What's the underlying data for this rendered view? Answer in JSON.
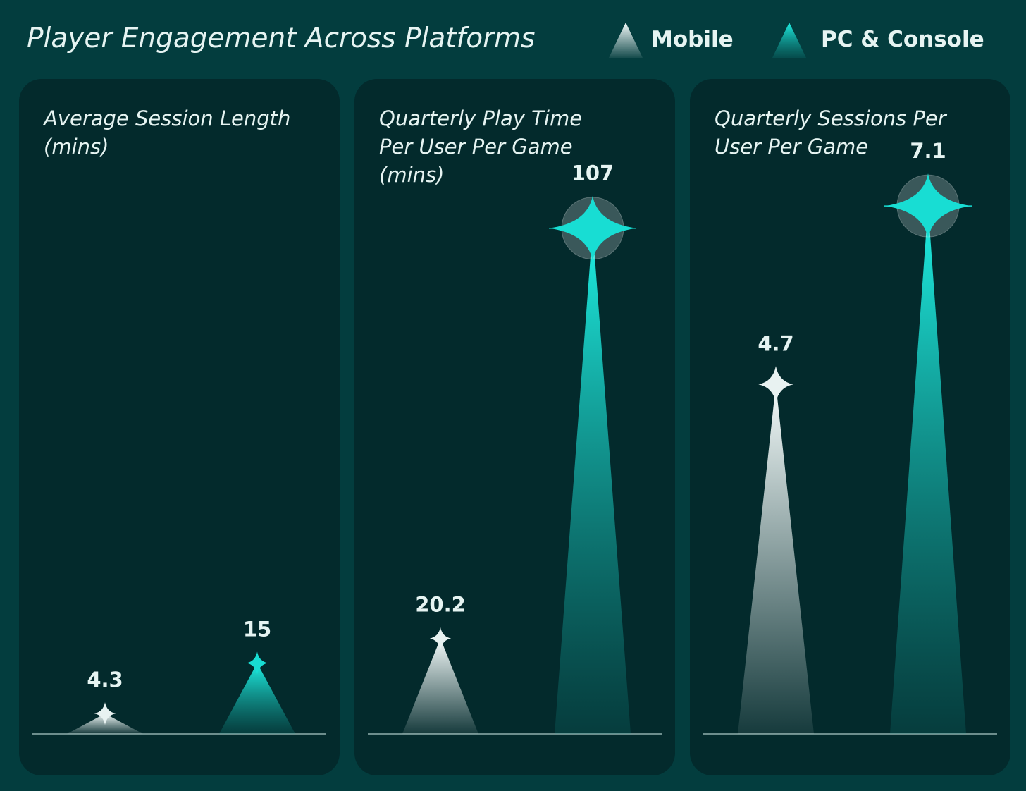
{
  "title": "Player Engagement Across Platforms",
  "chart_data": [
    {
      "type": "spike",
      "title": "Average Session Length (mins)",
      "ylim": [
        0,
        118
      ],
      "series": [
        {
          "name": "Mobile",
          "color": "#e8f2f1",
          "values": [
            4.3
          ]
        },
        {
          "name": "PC & Console",
          "color": "#18ddd3",
          "values": [
            15
          ]
        }
      ]
    },
    {
      "type": "spike",
      "title": "Quarterly Play Time Per User Per Game (mins)",
      "ylim": [
        0,
        118
      ],
      "series": [
        {
          "name": "Mobile",
          "color": "#e8f2f1",
          "values": [
            20.2
          ]
        },
        {
          "name": "PC & Console",
          "color": "#18ddd3",
          "values": [
            107
          ]
        }
      ]
    },
    {
      "type": "spike",
      "title": "Quarterly Sessions Per User Per Game",
      "ylim": [
        0,
        7.5
      ],
      "series": [
        {
          "name": "Mobile",
          "color": "#e8f2f1",
          "values": [
            4.7
          ]
        },
        {
          "name": "PC & Console",
          "color": "#18ddd3",
          "values": [
            7.1
          ]
        }
      ]
    }
  ]
}
